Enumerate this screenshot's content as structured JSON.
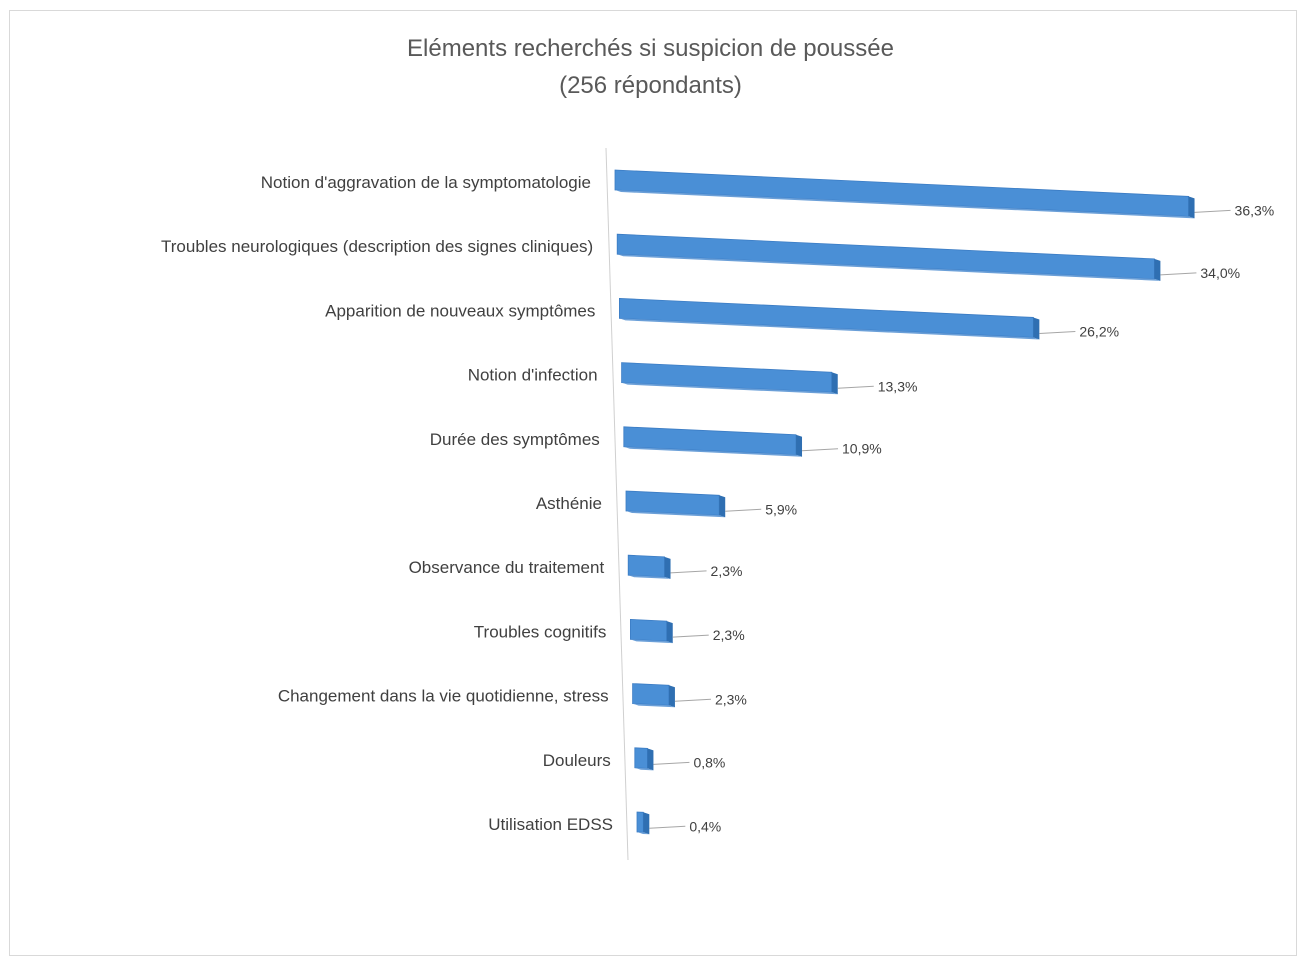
{
  "chart_data": {
    "type": "bar",
    "orientation": "horizontal",
    "style": "3d",
    "title": "Eléments recherchés si suspicion de poussée",
    "subtitle": "(256 répondants)",
    "categories": [
      "Notion d'aggravation de la symptomatologie",
      "Troubles neurologiques (description des signes cliniques)",
      "Apparition de nouveaux symptômes",
      "Notion d'infection",
      "Durée des symptômes",
      "Asthénie",
      "Observance du traitement",
      "Troubles cognitifs",
      "Changement dans la vie quotidienne, stress",
      "Douleurs",
      "Utilisation EDSS"
    ],
    "values": [
      36.3,
      34.0,
      26.2,
      13.3,
      10.9,
      5.9,
      2.3,
      2.3,
      2.3,
      0.8,
      0.4
    ],
    "data_labels": [
      "36,3%",
      "34,0%",
      "26,2%",
      "13,3%",
      "10,9%",
      "5,9%",
      "2,3%",
      "2,3%",
      "2,3%",
      "0,8%",
      "0,4%"
    ],
    "unit": "%",
    "xlabel": "",
    "ylabel": "",
    "grid": false,
    "legend": "none",
    "bar_color": "#4a8fd6",
    "bar_side_color": "#2f6fb2"
  }
}
